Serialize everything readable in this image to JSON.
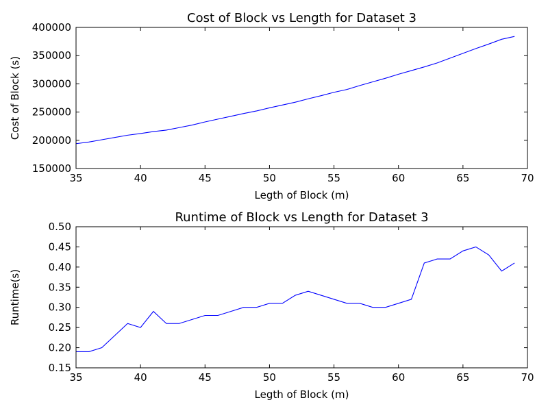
{
  "chart_data": [
    {
      "type": "line",
      "title": "Cost of Block vs Length for Dataset 3",
      "xlabel": "Legth of Block (m)",
      "ylabel": "Cost of Block (s)",
      "xlim": [
        35,
        70
      ],
      "ylim": [
        150000,
        400000
      ],
      "xticks": [
        35,
        40,
        45,
        50,
        55,
        60,
        65,
        70
      ],
      "yticks": [
        150000,
        200000,
        250000,
        300000,
        350000,
        400000
      ],
      "grid": false,
      "line_color": "#0000ff",
      "series": [
        {
          "x": [
            35,
            36,
            37,
            38,
            39,
            40,
            41,
            42,
            43,
            44,
            45,
            46,
            47,
            48,
            49,
            50,
            51,
            52,
            53,
            54,
            55,
            56,
            57,
            58,
            59,
            60,
            61,
            62,
            63,
            64,
            65,
            66,
            67,
            68,
            69
          ],
          "values": [
            194000,
            197000,
            201000,
            205000,
            209000,
            212000,
            215500,
            218000,
            222500,
            227000,
            232500,
            237500,
            242500,
            247500,
            252000,
            257500,
            262500,
            267500,
            273500,
            279000,
            285000,
            290000,
            297000,
            303500,
            310000,
            317000,
            323500,
            330000,
            337000,
            345500,
            354000,
            362500,
            370500,
            379000,
            384000
          ]
        }
      ]
    },
    {
      "type": "line",
      "title": "Runtime of Block vs Length for Dataset 3",
      "xlabel": "Legth of Block (m)",
      "ylabel": "Runtime(s)",
      "xlim": [
        35,
        70
      ],
      "ylim": [
        0.15,
        0.5
      ],
      "xticks": [
        35,
        40,
        45,
        50,
        55,
        60,
        65,
        70
      ],
      "yticks": [
        "0.15",
        "0.20",
        "0.25",
        "0.30",
        "0.35",
        "0.40",
        "0.45",
        "0.50"
      ],
      "grid": false,
      "line_color": "#0000ff",
      "series": [
        {
          "x": [
            35,
            36,
            37,
            38,
            39,
            40,
            41,
            42,
            43,
            44,
            45,
            46,
            47,
            48,
            49,
            50,
            51,
            52,
            53,
            54,
            55,
            56,
            57,
            58,
            59,
            60,
            61,
            62,
            63,
            64,
            65,
            66,
            67,
            68,
            69
          ],
          "values": [
            0.19,
            0.19,
            0.2,
            0.23,
            0.26,
            0.25,
            0.29,
            0.26,
            0.26,
            0.27,
            0.28,
            0.28,
            0.29,
            0.3,
            0.3,
            0.31,
            0.31,
            0.33,
            0.34,
            0.33,
            0.32,
            0.31,
            0.31,
            0.3,
            0.3,
            0.31,
            0.32,
            0.41,
            0.42,
            0.42,
            0.44,
            0.45,
            0.43,
            0.39,
            0.41
          ]
        }
      ]
    }
  ]
}
